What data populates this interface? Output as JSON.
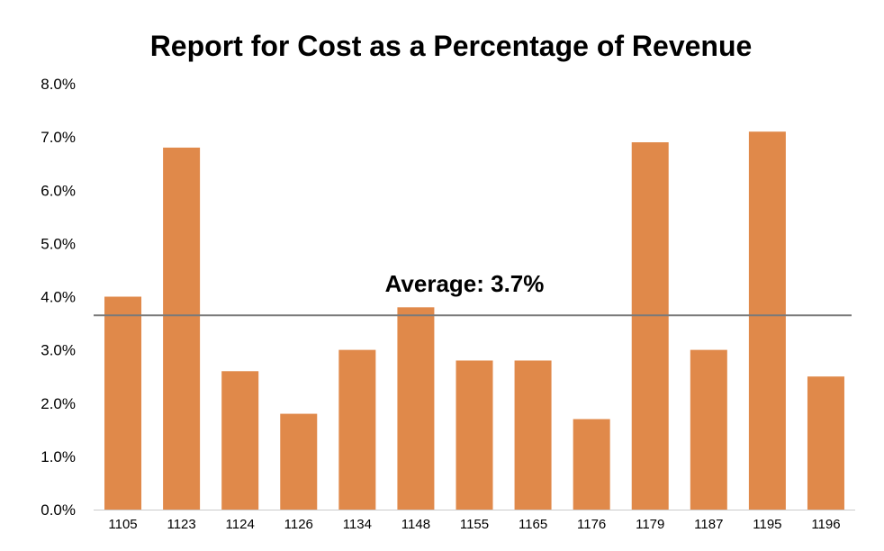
{
  "chart_data": {
    "type": "bar",
    "title": "Report for Cost as a Percentage of Revenue",
    "xlabel": "",
    "ylabel": "",
    "categories": [
      "1105",
      "1123",
      "1124",
      "1126",
      "1134",
      "1148",
      "1155",
      "1165",
      "1176",
      "1179",
      "1187",
      "1195",
      "1196"
    ],
    "values": [
      4.0,
      6.8,
      2.6,
      1.8,
      3.0,
      3.8,
      2.8,
      2.8,
      1.7,
      6.9,
      3.0,
      7.1,
      2.5
    ],
    "ylim": [
      0,
      8
    ],
    "y_ticks": [
      "0.0%",
      "1.0%",
      "2.0%",
      "3.0%",
      "4.0%",
      "5.0%",
      "6.0%",
      "7.0%",
      "8.0%"
    ],
    "average": {
      "value": 3.65,
      "label": "Average: 3.7%"
    },
    "grid": false,
    "legend": "none",
    "colors": {
      "bar": "#e0894a",
      "average_line": "#7a7a7a",
      "axis": "#cccccc"
    }
  }
}
